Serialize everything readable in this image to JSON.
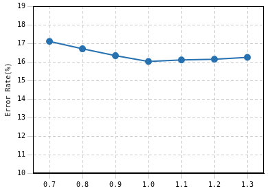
{
  "chart_data": {
    "type": "line",
    "categories": [
      "0.7",
      "0.8",
      "0.9",
      "1.0",
      "1.1",
      "1.2",
      "1.3"
    ],
    "values": [
      17.1,
      16.7,
      16.33,
      16.02,
      16.1,
      16.14,
      16.24
    ],
    "color": "#2771b0",
    "marker": "circle",
    "y_label": "Error Rate(%)",
    "ylim": [
      10,
      19
    ],
    "yticks": [
      10,
      11,
      12,
      13,
      14,
      15,
      16,
      17,
      18,
      19
    ],
    "grid": true
  }
}
